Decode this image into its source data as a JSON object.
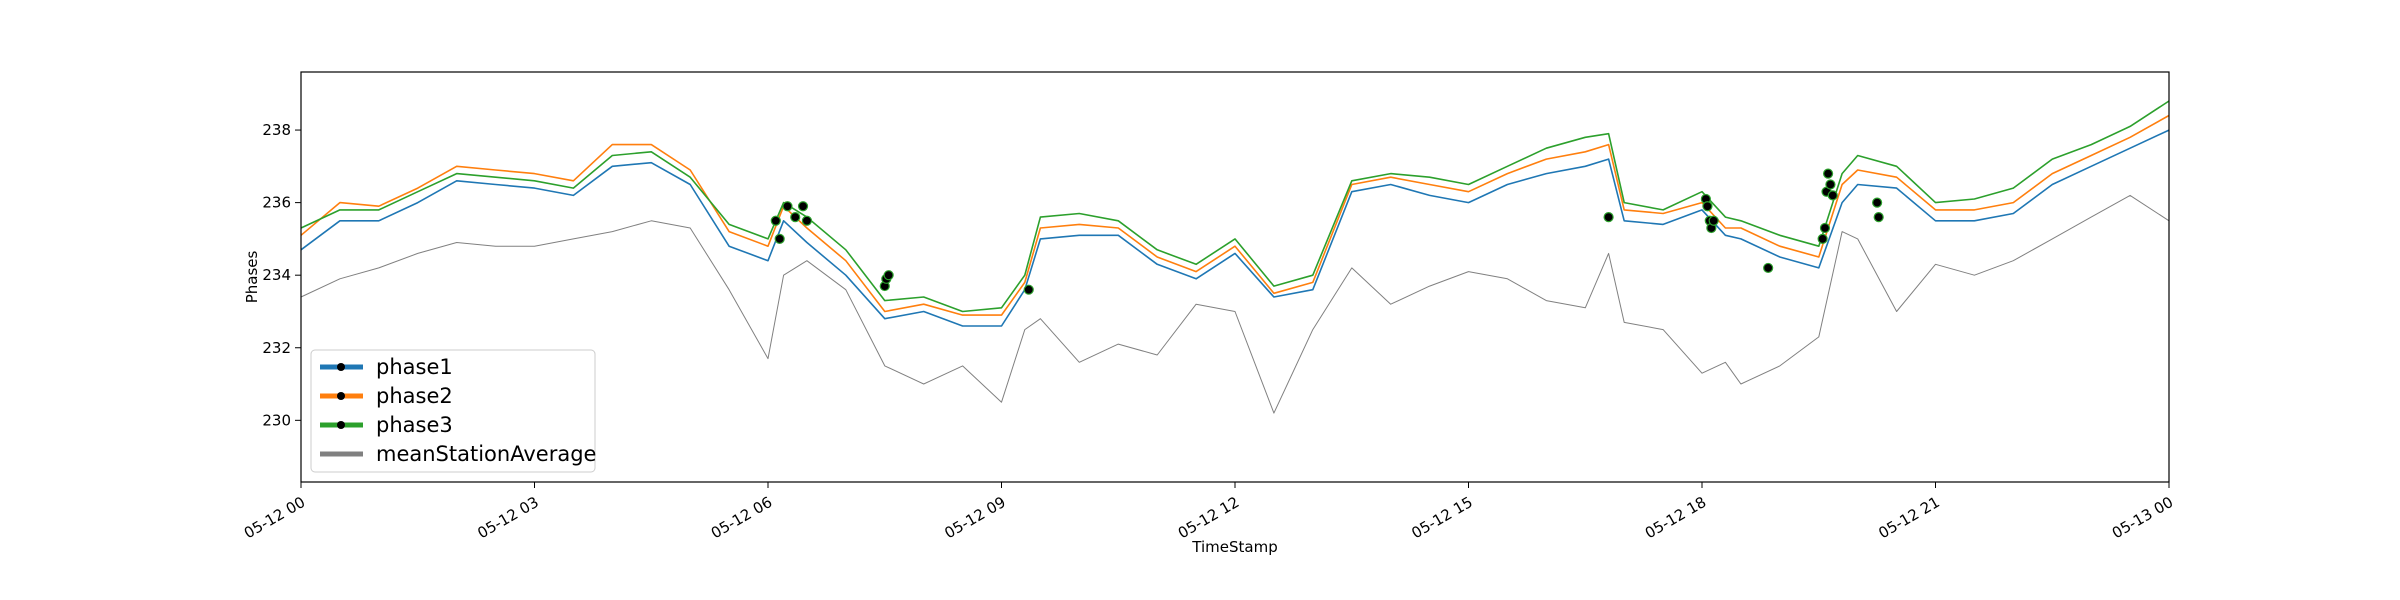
{
  "chart_data": {
    "type": "line",
    "title": "",
    "xlabel": "TimeStamp",
    "ylabel": "Phases",
    "xlim": [
      0,
      24
    ],
    "ylim": [
      228.3,
      239.6
    ],
    "x_ticks": [
      {
        "value": 0,
        "label": "05-12 00"
      },
      {
        "value": 3,
        "label": "05-12 03"
      },
      {
        "value": 6,
        "label": "05-12 06"
      },
      {
        "value": 9,
        "label": "05-12 09"
      },
      {
        "value": 12,
        "label": "05-12 12"
      },
      {
        "value": 15,
        "label": "05-12 15"
      },
      {
        "value": 18,
        "label": "05-12 18"
      },
      {
        "value": 21,
        "label": "05-12 21"
      },
      {
        "value": 24,
        "label": "05-13 00"
      }
    ],
    "y_ticks": [
      {
        "value": 230,
        "label": "230"
      },
      {
        "value": 232,
        "label": "232"
      },
      {
        "value": 234,
        "label": "234"
      },
      {
        "value": 236,
        "label": "236"
      },
      {
        "value": 238,
        "label": "238"
      }
    ],
    "grid": false,
    "legend_position": "lower-left",
    "x": [
      0,
      0.5,
      1,
      1.5,
      2,
      2.5,
      3,
      3.5,
      4,
      4.5,
      5,
      5.5,
      6,
      6.2,
      6.5,
      7,
      7.5,
      8,
      8.5,
      9,
      9.3,
      9.5,
      10,
      10.5,
      11,
      11.5,
      12,
      12.5,
      13,
      13.5,
      14,
      14.5,
      15,
      15.5,
      16,
      16.5,
      16.8,
      17,
      17.5,
      18,
      18.3,
      18.5,
      19,
      19.5,
      19.8,
      20,
      20.5,
      21,
      21.5,
      22,
      22.5,
      23,
      23.5,
      24
    ],
    "series": [
      {
        "name": "phase1",
        "color": "#1f77b4",
        "values": [
          234.7,
          235.5,
          235.5,
          236.0,
          236.6,
          236.5,
          236.4,
          236.2,
          237.0,
          237.1,
          236.5,
          234.8,
          234.4,
          235.5,
          234.9,
          234.0,
          232.8,
          233.0,
          232.6,
          232.6,
          233.6,
          235.0,
          235.1,
          235.1,
          234.3,
          233.9,
          234.6,
          233.4,
          233.6,
          236.3,
          236.5,
          236.2,
          236.0,
          236.5,
          236.8,
          237.0,
          237.2,
          235.5,
          235.4,
          235.8,
          235.1,
          235.0,
          234.5,
          234.2,
          236.0,
          236.5,
          236.4,
          235.5,
          235.5,
          235.7,
          236.5,
          237.0,
          237.5,
          238.0
        ]
      },
      {
        "name": "phase2",
        "color": "#ff7f0e",
        "values": [
          235.1,
          236.0,
          235.9,
          236.4,
          237.0,
          236.9,
          236.8,
          236.6,
          237.6,
          237.6,
          236.9,
          235.2,
          234.8,
          235.9,
          235.3,
          234.4,
          233.0,
          233.2,
          232.9,
          232.9,
          233.8,
          235.3,
          235.4,
          235.3,
          234.5,
          234.1,
          234.8,
          233.5,
          233.8,
          236.5,
          236.7,
          236.5,
          236.3,
          236.8,
          237.2,
          237.4,
          237.6,
          235.8,
          235.7,
          236.0,
          235.3,
          235.3,
          234.8,
          234.5,
          236.5,
          236.9,
          236.7,
          235.8,
          235.8,
          236.0,
          236.8,
          237.3,
          237.8,
          238.4
        ]
      },
      {
        "name": "phase3",
        "color": "#2ca02c",
        "values": [
          235.3,
          235.8,
          235.8,
          236.3,
          236.8,
          236.7,
          236.6,
          236.4,
          237.3,
          237.4,
          236.7,
          235.4,
          235.0,
          236.0,
          235.6,
          234.7,
          233.3,
          233.4,
          233.0,
          233.1,
          234.0,
          235.6,
          235.7,
          235.5,
          234.7,
          234.3,
          235.0,
          233.7,
          234.0,
          236.6,
          236.8,
          236.7,
          236.5,
          237.0,
          237.5,
          237.8,
          237.9,
          236.0,
          235.8,
          236.3,
          235.6,
          235.5,
          235.1,
          234.8,
          236.8,
          237.3,
          237.0,
          236.0,
          236.1,
          236.4,
          237.2,
          237.6,
          238.1,
          238.8
        ]
      },
      {
        "name": "meanStationAverage",
        "color": "#808080",
        "values": [
          233.4,
          233.9,
          234.2,
          234.6,
          234.9,
          234.8,
          234.8,
          235.0,
          235.2,
          235.5,
          235.3,
          233.6,
          231.7,
          234.0,
          234.4,
          233.6,
          231.5,
          231.0,
          231.5,
          230.5,
          232.5,
          232.8,
          231.6,
          232.1,
          231.8,
          233.2,
          233.0,
          230.2,
          232.5,
          234.2,
          233.2,
          233.7,
          234.1,
          233.9,
          233.3,
          233.1,
          234.6,
          232.7,
          232.5,
          231.3,
          231.6,
          231.0,
          231.5,
          232.3,
          235.2,
          235.0,
          233.0,
          234.3,
          234.0,
          234.4,
          235.0,
          235.6,
          236.2,
          235.5
        ]
      }
    ],
    "markers": [
      {
        "x": 6.1,
        "y": 235.5
      },
      {
        "x": 6.15,
        "y": 235.0
      },
      {
        "x": 6.25,
        "y": 235.9
      },
      {
        "x": 6.35,
        "y": 235.6
      },
      {
        "x": 6.45,
        "y": 235.9
      },
      {
        "x": 6.5,
        "y": 235.5
      },
      {
        "x": 7.5,
        "y": 233.7
      },
      {
        "x": 7.52,
        "y": 233.9
      },
      {
        "x": 7.55,
        "y": 234.0
      },
      {
        "x": 9.35,
        "y": 233.6
      },
      {
        "x": 16.8,
        "y": 235.6
      },
      {
        "x": 18.05,
        "y": 236.1
      },
      {
        "x": 18.07,
        "y": 235.9
      },
      {
        "x": 18.1,
        "y": 235.5
      },
      {
        "x": 18.12,
        "y": 235.3
      },
      {
        "x": 18.15,
        "y": 235.5
      },
      {
        "x": 18.85,
        "y": 234.2
      },
      {
        "x": 19.55,
        "y": 235.0
      },
      {
        "x": 19.58,
        "y": 235.3
      },
      {
        "x": 19.6,
        "y": 236.3
      },
      {
        "x": 19.62,
        "y": 236.8
      },
      {
        "x": 19.65,
        "y": 236.5
      },
      {
        "x": 19.68,
        "y": 236.2
      },
      {
        "x": 20.25,
        "y": 236.0
      },
      {
        "x": 20.27,
        "y": 235.6
      }
    ]
  }
}
